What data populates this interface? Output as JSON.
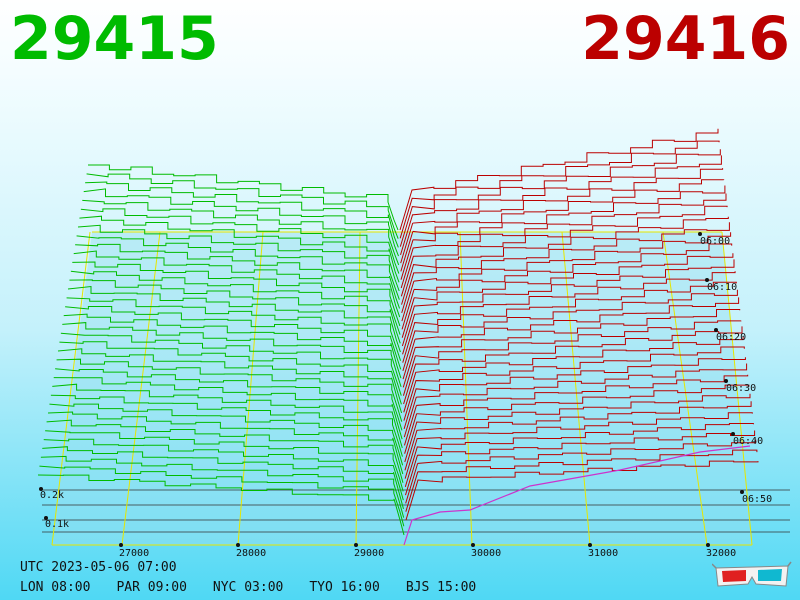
{
  "header": {
    "bid_price": "29415",
    "ask_price": "29416",
    "bid_color": "#00bb00",
    "ask_color": "#bb0000"
  },
  "footer": {
    "utc": "UTC 2023-05-06 07:00",
    "timezones": [
      {
        "label": "LON 08:00"
      },
      {
        "label": "PAR 09:00"
      },
      {
        "label": "NYC 03:00"
      },
      {
        "label": "TYO 16:00"
      },
      {
        "label": "BJS 15:00"
      }
    ]
  },
  "icons": {
    "glasses": "3d-glasses-icon"
  },
  "chart_data": {
    "type": "depth-3d",
    "x_ticks": [
      "27000",
      "28000",
      "29000",
      "30000",
      "31000",
      "32000"
    ],
    "time_ticks": [
      "06:00",
      "06:10",
      "06:20",
      "06:30",
      "06:40",
      "06:50"
    ],
    "depth_ticks": [
      "0.2k",
      "0.1k"
    ],
    "series": [
      {
        "side": "bid",
        "color": "#00bb00"
      },
      {
        "side": "ask",
        "color": "#bb0000"
      }
    ],
    "grid": true,
    "grid_color": "#e6e600"
  }
}
